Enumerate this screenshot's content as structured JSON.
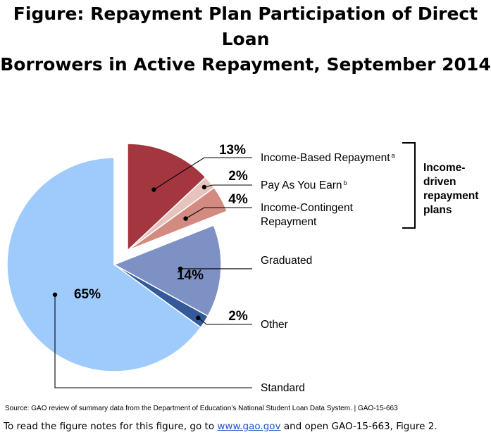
{
  "title": {
    "line1": "Figure: Repayment Plan Participation of Direct Loan",
    "line2": "Borrowers in Active Repayment, September 2014"
  },
  "chart_data": {
    "type": "pie",
    "title": "Repayment Plan Participation of Direct Loan Borrowers in Active Repayment, September 2014",
    "slices": [
      {
        "label": "Income-Based Repayment",
        "superscript": "a",
        "value": 13,
        "value_label": "13%",
        "color": "#a4363f",
        "group": "income-driven"
      },
      {
        "label": "Pay As You Earn",
        "superscript": "b",
        "value": 2,
        "value_label": "2%",
        "color": "#e6c3bd",
        "group": "income-driven"
      },
      {
        "label": "Income-Contingent",
        "label_line2": "Repayment",
        "value": 4,
        "value_label": "4%",
        "color": "#d38b81",
        "group": "income-driven"
      },
      {
        "label": "Graduated",
        "value": 14,
        "value_label": "14%",
        "color": "#7e91c4",
        "group": "other"
      },
      {
        "label": "Other",
        "value": 2,
        "value_label": "2%",
        "color": "#34599b",
        "group": "other"
      },
      {
        "label": "Standard",
        "value": 65,
        "value_label": "65%",
        "color": "#9fcbfc",
        "group": "other"
      }
    ],
    "bracket_label": [
      "Income-",
      "driven",
      "repayment",
      "plans"
    ]
  },
  "source": "Source: GAO review of summary data from the Department of Education’s National Student Loan Data System.  |  GAO-15-663",
  "notes": {
    "prefix": "To read the figure notes for this figure, go to ",
    "link": "www.gao.gov",
    "suffix": " and open GAO-15-663,  Figure 2."
  }
}
